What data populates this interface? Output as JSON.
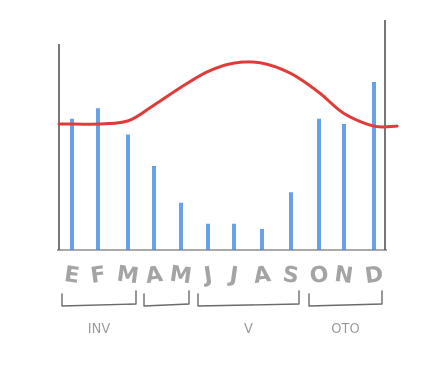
{
  "chart_data": {
    "type": "bar",
    "categories": [
      "E",
      "F",
      "M",
      "A",
      "M",
      "J",
      "J",
      "A",
      "S",
      "O",
      "N",
      "D"
    ],
    "series": [
      {
        "values": [
          125,
          135,
          110,
          80,
          45,
          25,
          25,
          20,
          55,
          125,
          120,
          160
        ]
      }
    ],
    "line": {
      "values": [
        120,
        120,
        123,
        138,
        155,
        170,
        178,
        178,
        168,
        150,
        130,
        118
      ]
    },
    "ylim": [
      0,
      200
    ],
    "season_groups": [
      {
        "label": "INV",
        "start": 0,
        "end": 2
      },
      {
        "label": "",
        "start": 3,
        "end": 4
      },
      {
        "label": "V",
        "start": 5,
        "end": 8
      },
      {
        "label": "OTO",
        "start": 9,
        "end": 11
      }
    ],
    "colors": {
      "bars": "#4f8fe6",
      "line": "#e03a3a",
      "axis": "#555555"
    }
  }
}
